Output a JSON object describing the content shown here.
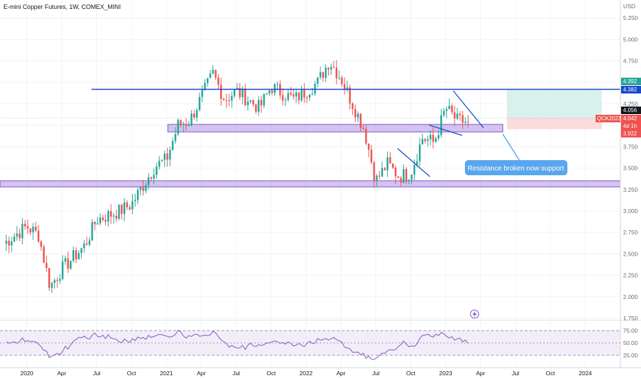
{
  "header": {
    "title": "E-mini Copper Futures, 1W, COMEX_MINI"
  },
  "price_axis": {
    "currency": "USD",
    "ticks": [
      "5.250",
      "5.000",
      "4.750",
      "4.500",
      "4.250",
      "4.000",
      "3.750",
      "3.500",
      "3.250",
      "3.000",
      "2.750",
      "2.500",
      "2.250",
      "2.000",
      "1.750"
    ]
  },
  "time_axis": {
    "labels": [
      "2020",
      "Apr",
      "Jul",
      "Oct",
      "2021",
      "Apr",
      "Jul",
      "Oct",
      "2022",
      "Apr",
      "Jul",
      "Oct",
      "2023",
      "Apr",
      "Jul",
      "Oct",
      "2024"
    ]
  },
  "price_tags": {
    "tp": "4.392",
    "resistance": "4.382",
    "high": "4.056",
    "symbol": "QCK2023",
    "last": "4.042",
    "countdown": "4d 1h",
    "stop": "3.922"
  },
  "annotation": {
    "text": "Resistance broken now support"
  },
  "rsi": {
    "levels": [
      "75.00",
      "50.00",
      "25.00"
    ]
  },
  "colors": {
    "up": "#26a69a",
    "down": "#ef5350",
    "trendline": "#1848cc",
    "zone_fill": "#c9b3ec",
    "zone_stroke": "#7e57c2",
    "rsi_line": "#7e57c2",
    "rsi_band": "#ede7f6",
    "callout": "#5aa6ec",
    "tp_zone": "#d8f1ed",
    "sl_zone": "#fbdcdc"
  },
  "chart_data": {
    "type": "candlestick",
    "title": "E-mini Copper Futures, 1W, COMEX_MINI",
    "x_range": [
      "2019-11",
      "2024-03"
    ],
    "ylim": [
      1.75,
      5.3
    ],
    "series": [
      {
        "name": "close",
        "x": [
          "2019-11",
          "2020-01",
          "2020-02",
          "2020-03",
          "2020-04",
          "2020-06",
          "2020-07",
          "2020-09",
          "2020-10",
          "2020-12",
          "2021-01",
          "2021-02",
          "2021-03",
          "2021-05",
          "2021-06",
          "2021-07",
          "2021-09",
          "2021-10",
          "2021-12",
          "2022-01",
          "2022-02",
          "2022-03",
          "2022-04",
          "2022-05",
          "2022-06",
          "2022-07",
          "2022-08",
          "2022-09",
          "2022-10",
          "2022-11",
          "2022-12",
          "2023-01",
          "2023-02",
          "2023-03"
        ],
        "y": [
          2.62,
          2.82,
          2.72,
          2.12,
          2.32,
          2.6,
          2.9,
          3.0,
          3.08,
          3.52,
          3.6,
          4.0,
          4.05,
          4.6,
          4.3,
          4.4,
          4.2,
          4.45,
          4.3,
          4.4,
          4.5,
          4.75,
          4.55,
          4.25,
          3.95,
          3.35,
          3.55,
          3.4,
          3.45,
          3.85,
          3.8,
          4.2,
          4.05,
          4.04
        ]
      }
    ],
    "levels": {
      "resistance": 4.382,
      "support_zone": [
        3.92,
        4.0
      ],
      "lower_zone": [
        3.25,
        3.33
      ],
      "take_profit": 4.392,
      "stop": 3.922
    },
    "rsi_levels": [
      25,
      50,
      75
    ],
    "annotations": [
      "Resistance broken now support"
    ]
  }
}
